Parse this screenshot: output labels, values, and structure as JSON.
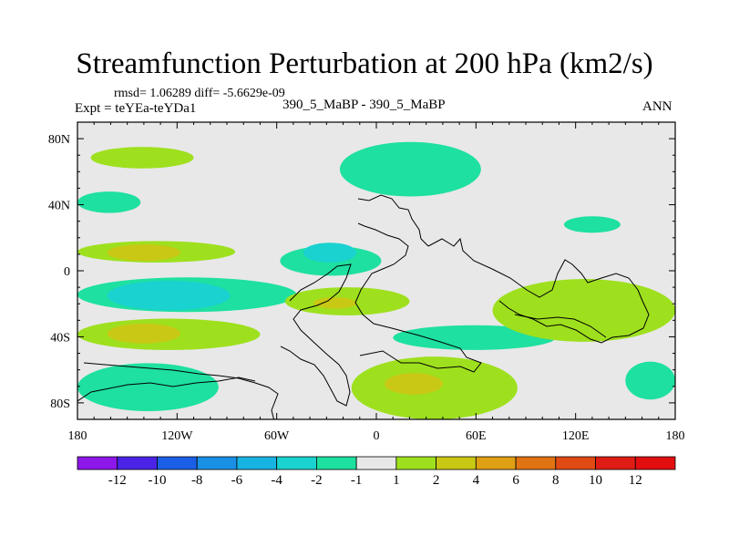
{
  "header": {
    "title": "Streamfunction Perturbation at 200 hPa (km2/s)",
    "stats": "rmsd= 1.06289 diff= -5.6629e-09",
    "experiment": "Expt = teYEa-teYDa1",
    "case": "390_5_MaBP - 390_5_MaBP",
    "season": "ANN"
  },
  "colors": {
    "background_field": "#e8e8e8",
    "levels": [
      {
        "label": "-12",
        "color": "#8d16e8"
      },
      {
        "label": "-10",
        "color": "#4a23e6"
      },
      {
        "label": "-8",
        "color": "#1b5fe6"
      },
      {
        "label": "-6",
        "color": "#1a8fe6"
      },
      {
        "label": "-4",
        "color": "#17b4e3"
      },
      {
        "label": "-2",
        "color": "#1ad2d0"
      },
      {
        "label": "-1",
        "color": "#1ee0a0"
      },
      {
        "label": "1",
        "color": "#e8e8e8"
      },
      {
        "label": "2",
        "color": "#9ee01e"
      },
      {
        "label": "4",
        "color": "#c9c814"
      },
      {
        "label": "6",
        "color": "#e0a014"
      },
      {
        "label": "8",
        "color": "#e07314"
      },
      {
        "label": "10",
        "color": "#e04a14"
      },
      {
        "label": "12",
        "color": "#e01d14"
      },
      {
        "label": "",
        "color": "#e30e10"
      }
    ]
  },
  "chart_data": {
    "type": "heatmap",
    "title": "Streamfunction Perturbation at 200 hPa (km2/s)",
    "xlim": [
      -180,
      180
    ],
    "ylim": [
      -90,
      90
    ],
    "x_ticks": [
      {
        "value": -180,
        "label": "180"
      },
      {
        "value": -120,
        "label": "120W"
      },
      {
        "value": -60,
        "label": "60W"
      },
      {
        "value": 0,
        "label": "0"
      },
      {
        "value": 60,
        "label": "60E"
      },
      {
        "value": 120,
        "label": "120E"
      },
      {
        "value": 180,
        "label": "180"
      }
    ],
    "y_ticks": [
      {
        "value": 80,
        "label": "80N"
      },
      {
        "value": 40,
        "label": "40N"
      },
      {
        "value": 0,
        "label": "0"
      },
      {
        "value": -40,
        "label": "40S"
      },
      {
        "value": -80,
        "label": "80S"
      }
    ],
    "colorbar_labels": [
      "-12",
      "-10",
      "-8",
      "-6",
      "-4",
      "-2",
      "-1",
      "1",
      "2",
      "4",
      "6",
      "8",
      "10",
      "12"
    ],
    "features": [
      {
        "name": "N-mid-lat-positive-west",
        "value": 2,
        "lon": [
          -172,
          -110
        ],
        "lat": [
          62,
          75
        ]
      },
      {
        "name": "N-subtropics-negative-west",
        "value": -1,
        "lon": [
          -180,
          -142
        ],
        "lat": [
          35,
          48
        ]
      },
      {
        "name": "N-tropics-positive-dateline",
        "value": 2,
        "lon": [
          -180,
          -85
        ],
        "lat": [
          5,
          18
        ],
        "core": {
          "value": 4,
          "lon": [
            -162,
            -118
          ],
          "lat": [
            6,
            16
          ]
        }
      },
      {
        "name": "N-tropics-negative-central",
        "value": -1,
        "lon": [
          -58,
          3
        ],
        "lat": [
          -3,
          15
        ],
        "core": {
          "value": -2,
          "lon": [
            -44,
            -12
          ],
          "lat": [
            5,
            17
          ]
        }
      },
      {
        "name": "N-subtropics-negative-africa",
        "value": -1,
        "lon": [
          -22,
          63
        ],
        "lat": [
          45,
          78
        ]
      },
      {
        "name": "Equator-negative-band",
        "value": -1,
        "lon": [
          -180,
          -48
        ],
        "lat": [
          -25,
          -4
        ],
        "core": {
          "value": -2,
          "lon": [
            -162,
            -88
          ],
          "lat": [
            -24,
            -6
          ]
        }
      },
      {
        "name": "Equator-positive-atlantic",
        "value": 2,
        "lon": [
          -55,
          20
        ],
        "lat": [
          -27,
          -10
        ],
        "core": {
          "value": 4,
          "lon": [
            -38,
            -12
          ],
          "lat": [
            -23,
            -16
          ]
        }
      },
      {
        "name": "S-tropics-positive-band",
        "value": 2,
        "lon": [
          -180,
          -70
        ],
        "lat": [
          -48,
          -29
        ],
        "core": {
          "value": 4,
          "lon": [
            -162,
            -118
          ],
          "lat": [
            -44,
            -32
          ]
        }
      },
      {
        "name": "S-mid-lat-negative-west",
        "value": -1,
        "lon": [
          -180,
          -95
        ],
        "lat": [
          -85,
          -56
        ]
      },
      {
        "name": "S-mid-lat-positive-atlantic",
        "value": 2,
        "lon": [
          -15,
          85
        ],
        "lat": [
          -90,
          -52
        ],
        "core": {
          "value": 4,
          "lon": [
            5,
            40
          ],
          "lat": [
            -75,
            -62
          ]
        }
      },
      {
        "name": "S-tropics-negative-indian",
        "value": -1,
        "lon": [
          10,
          108
        ],
        "lat": [
          -48,
          -33
        ]
      },
      {
        "name": "Indian-positive-band",
        "value": 2,
        "lon": [
          70,
          180
        ],
        "lat": [
          -43,
          -5
        ]
      },
      {
        "name": "S-mid-lat-negative-pacific",
        "value": -1,
        "lon": [
          150,
          180
        ],
        "lat": [
          -78,
          -55
        ]
      },
      {
        "name": "N-subtropics-negative-pacific",
        "value": -1,
        "lon": [
          113,
          147
        ],
        "lat": [
          23,
          33
        ]
      }
    ]
  }
}
